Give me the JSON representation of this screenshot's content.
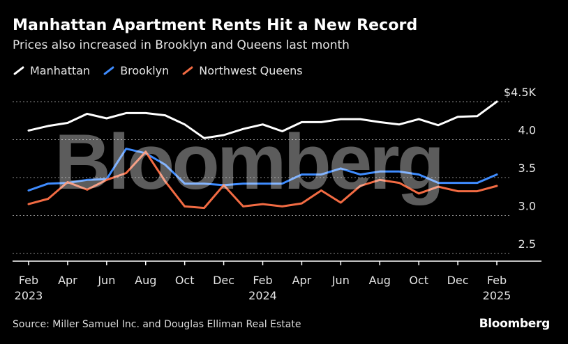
{
  "chart_data": {
    "type": "line",
    "title": "Manhattan Apartment Rents Hit a New Record",
    "subtitle": "Prices also increased in Brooklyn and Queens last month",
    "x": [
      "2023-02",
      "2023-03",
      "2023-04",
      "2023-05",
      "2023-06",
      "2023-07",
      "2023-08",
      "2023-09",
      "2023-10",
      "2023-11",
      "2023-12",
      "2024-01",
      "2024-02",
      "2024-03",
      "2024-04",
      "2024-05",
      "2024-06",
      "2024-07",
      "2024-08",
      "2024-09",
      "2024-10",
      "2024-11",
      "2024-12",
      "2025-01",
      "2025-02"
    ],
    "tick_labels": [
      {
        "index": 0,
        "month": "Feb",
        "year": "2023"
      },
      {
        "index": 2,
        "month": "Apr",
        "year": ""
      },
      {
        "index": 4,
        "month": "Jun",
        "year": ""
      },
      {
        "index": 6,
        "month": "Aug",
        "year": ""
      },
      {
        "index": 8,
        "month": "Oct",
        "year": ""
      },
      {
        "index": 10,
        "month": "Dec",
        "year": ""
      },
      {
        "index": 12,
        "month": "Feb",
        "year": "2024"
      },
      {
        "index": 14,
        "month": "Apr",
        "year": ""
      },
      {
        "index": 16,
        "month": "Jun",
        "year": ""
      },
      {
        "index": 18,
        "month": "Aug",
        "year": ""
      },
      {
        "index": 20,
        "month": "Oct",
        "year": ""
      },
      {
        "index": 22,
        "month": "Dec",
        "year": ""
      },
      {
        "index": 24,
        "month": "Feb",
        "year": "2025"
      }
    ],
    "y_ticks": [
      {
        "value": 4.5,
        "label": "$4.5K"
      },
      {
        "value": 4.0,
        "label": "4.0"
      },
      {
        "value": 3.5,
        "label": "3.5"
      },
      {
        "value": 3.0,
        "label": "3.0"
      },
      {
        "value": 2.5,
        "label": "2.5"
      }
    ],
    "ylim": [
      2.3,
      4.55
    ],
    "grid": true,
    "legend_position": "top-left",
    "series": [
      {
        "name": "Manhattan",
        "color": "#ffffff",
        "values": [
          4.12,
          4.18,
          4.22,
          4.34,
          4.28,
          4.35,
          4.35,
          4.32,
          4.2,
          4.02,
          4.06,
          4.14,
          4.2,
          4.11,
          4.23,
          4.23,
          4.27,
          4.27,
          4.23,
          4.2,
          4.27,
          4.19,
          4.3,
          4.31,
          4.5
        ]
      },
      {
        "name": "Brooklyn",
        "color": "#3f8cff",
        "values": [
          3.33,
          3.42,
          3.43,
          3.47,
          3.48,
          3.88,
          3.82,
          3.67,
          3.42,
          3.42,
          3.4,
          3.42,
          3.42,
          3.42,
          3.54,
          3.54,
          3.62,
          3.54,
          3.58,
          3.58,
          3.54,
          3.43,
          3.43,
          3.43,
          3.54
        ]
      },
      {
        "name": "Northwest Queens",
        "color": "#f26b43",
        "values": [
          3.15,
          3.22,
          3.44,
          3.34,
          3.47,
          3.56,
          3.84,
          3.45,
          3.12,
          3.1,
          3.4,
          3.12,
          3.15,
          3.12,
          3.16,
          3.33,
          3.17,
          3.39,
          3.47,
          3.43,
          3.29,
          3.38,
          3.32,
          3.32,
          3.39
        ]
      }
    ]
  },
  "watermark": "Bloomberg",
  "footer": {
    "source": "Source: Miller Samuel Inc. and Douglas Elliman Real Estate",
    "brand": "Bloomberg"
  }
}
